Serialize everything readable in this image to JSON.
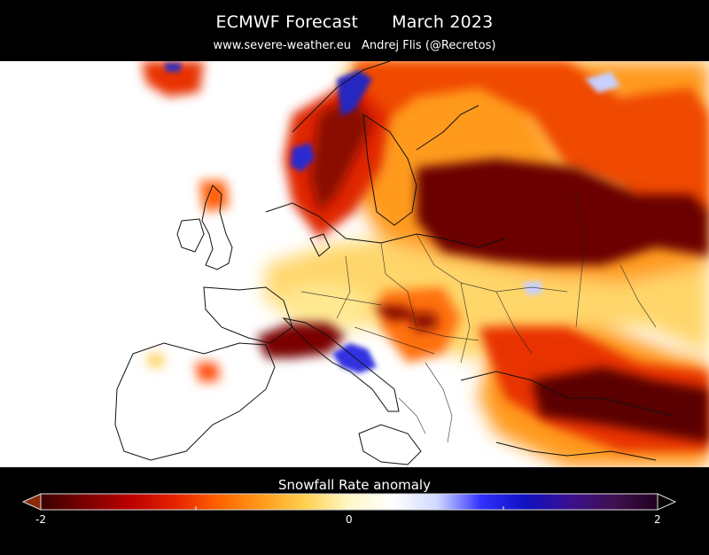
{
  "header": {
    "title_left": "ECMWF Forecast",
    "title_right": "March 2023",
    "website": "www.severe-weather.eu",
    "author": "Andrej Flis (@Recretos)"
  },
  "colorbar": {
    "title": "Snowfall Rate anomaly",
    "min_label": "-2",
    "mid_label": "0",
    "max_label": "2",
    "colors": [
      "#3a0000",
      "#7a0000",
      "#b80000",
      "#e42000",
      "#ff6000",
      "#ff9a1a",
      "#ffd050",
      "#fff8c8",
      "#ffffff",
      "#d0d8ff",
      "#3030ff",
      "#1010c0",
      "#3a1090",
      "#401050",
      "#200020"
    ]
  },
  "map": {
    "region": "Europe",
    "colors": {
      "strong_negative": "#6a0000",
      "negative": "#c81800",
      "moderate_negative": "#ff7a10",
      "weak_negative": "#ffd060",
      "neutral": "#ffffff",
      "positive": "#3030e0"
    }
  }
}
